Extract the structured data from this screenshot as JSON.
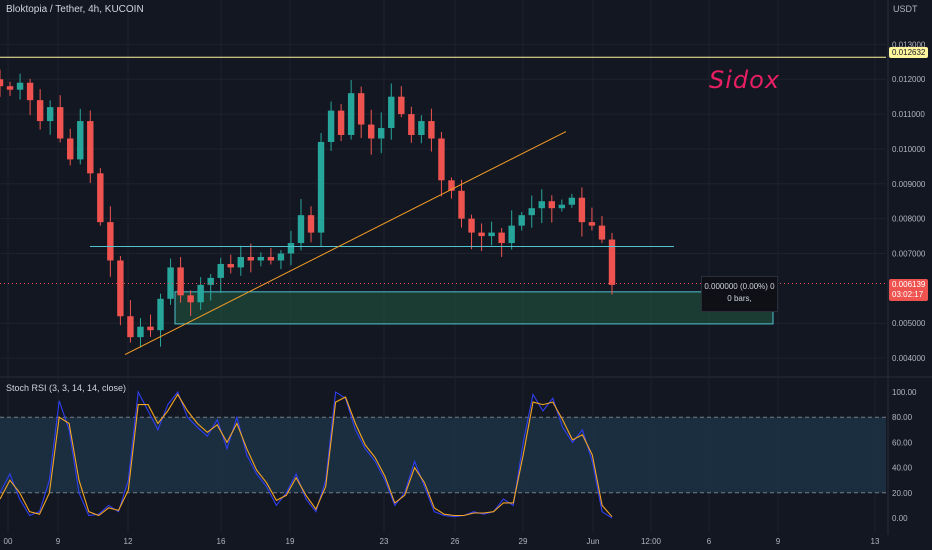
{
  "header": {
    "symbol_title": "Bloktopia / Tether, 4h, KUCOIN",
    "currency": "USDT",
    "watermark": "Sidox"
  },
  "rsi": {
    "title": "Stoch RSI (3, 3, 14, 14, close)",
    "ticks": [
      "100.00",
      "80.00",
      "60.00",
      "40.00",
      "20.00",
      "0.00"
    ]
  },
  "price_tags": {
    "hline": "0.012632",
    "last_price": "0.006139",
    "countdown": "03:02:17"
  },
  "measure": {
    "line1": "0.000000 (0.00%) 0",
    "line2": "0 bars,"
  },
  "colors": {
    "background": "#131722",
    "up": "#26a69a",
    "down": "#ef5350",
    "trendline": "#f59d25",
    "resistance": "#4fc3d0",
    "horizontal": "#fff59d",
    "zone_fill": "#1f4a3a",
    "rsi_k": "#2f3ef2",
    "rsi_d": "#f5a623",
    "rsi_band": "#1d3447",
    "watermark": "#e91e63"
  },
  "chart_data": [
    {
      "type": "candlestick",
      "title": "Bloktopia / Tether, 4h, KUCOIN",
      "y_ticks": [
        "0.013000",
        "0.012000",
        "0.011000",
        "0.010000",
        "0.009000",
        "0.008000",
        "0.007000",
        "0.005000",
        "0.004000"
      ],
      "x_ticks": [
        "00",
        "9",
        "12",
        "16",
        "19",
        "23",
        "26",
        "29",
        "Jun",
        "12:00",
        "6",
        "9",
        "13"
      ],
      "ylim": [
        0.0036,
        0.0137
      ],
      "horizontal_line": 0.012632,
      "last_price": 0.006139,
      "resistance_line": 0.0072,
      "demand_zone": [
        0.00498,
        0.0059
      ],
      "trendline": [
        [
          0.0041,
          "start"
        ],
        [
          0.0105,
          "end"
        ]
      ],
      "close_path": [
        0.0118,
        0.0117,
        0.0119,
        0.0114,
        0.0108,
        0.0112,
        0.0103,
        0.0097,
        0.0108,
        0.0093,
        0.0079,
        0.0068,
        0.0052,
        0.0046,
        0.0049,
        0.0048,
        0.0057,
        0.0066,
        0.0058,
        0.0056,
        0.0061,
        0.0063,
        0.0067,
        0.0066,
        0.0069,
        0.0068,
        0.0069,
        0.0068,
        0.007,
        0.0073,
        0.0081,
        0.0076,
        0.0102,
        0.0111,
        0.0104,
        0.0116,
        0.0107,
        0.0103,
        0.0106,
        0.0115,
        0.011,
        0.0104,
        0.0108,
        0.0103,
        0.0091,
        0.0088,
        0.008,
        0.0076,
        0.0075,
        0.0076,
        0.0073,
        0.0078,
        0.0081,
        0.0083,
        0.0085,
        0.0083,
        0.0084,
        0.0086,
        0.0079,
        0.0078,
        0.0074,
        0.0061
      ]
    },
    {
      "type": "line",
      "title": "Stoch RSI (3, 3, 14, 14, close)",
      "ylim": [
        0,
        100
      ],
      "bands": [
        20,
        80
      ],
      "series": [
        {
          "name": "K",
          "values": [
            20,
            35,
            15,
            2,
            5,
            30,
            93,
            70,
            20,
            2,
            3,
            10,
            5,
            30,
            100,
            85,
            70,
            90,
            100,
            80,
            72,
            65,
            78,
            55,
            80,
            50,
            35,
            25,
            10,
            20,
            35,
            15,
            5,
            30,
            100,
            95,
            70,
            55,
            45,
            30,
            10,
            20,
            45,
            25,
            5,
            2,
            1,
            2,
            5,
            3,
            5,
            15,
            10,
            60,
            98,
            85,
            95,
            72,
            60,
            70,
            45,
            5,
            0
          ]
        },
        {
          "name": "D",
          "values": [
            15,
            30,
            20,
            5,
            3,
            20,
            80,
            75,
            30,
            5,
            2,
            8,
            6,
            22,
            90,
            90,
            75,
            85,
            98,
            85,
            75,
            68,
            74,
            60,
            75,
            55,
            38,
            28,
            14,
            18,
            32,
            18,
            7,
            25,
            92,
            96,
            75,
            58,
            48,
            33,
            12,
            18,
            40,
            28,
            8,
            3,
            2,
            2,
            4,
            4,
            5,
            12,
            12,
            50,
            92,
            90,
            92,
            78,
            62,
            66,
            50,
            10,
            1
          ]
        }
      ]
    }
  ]
}
